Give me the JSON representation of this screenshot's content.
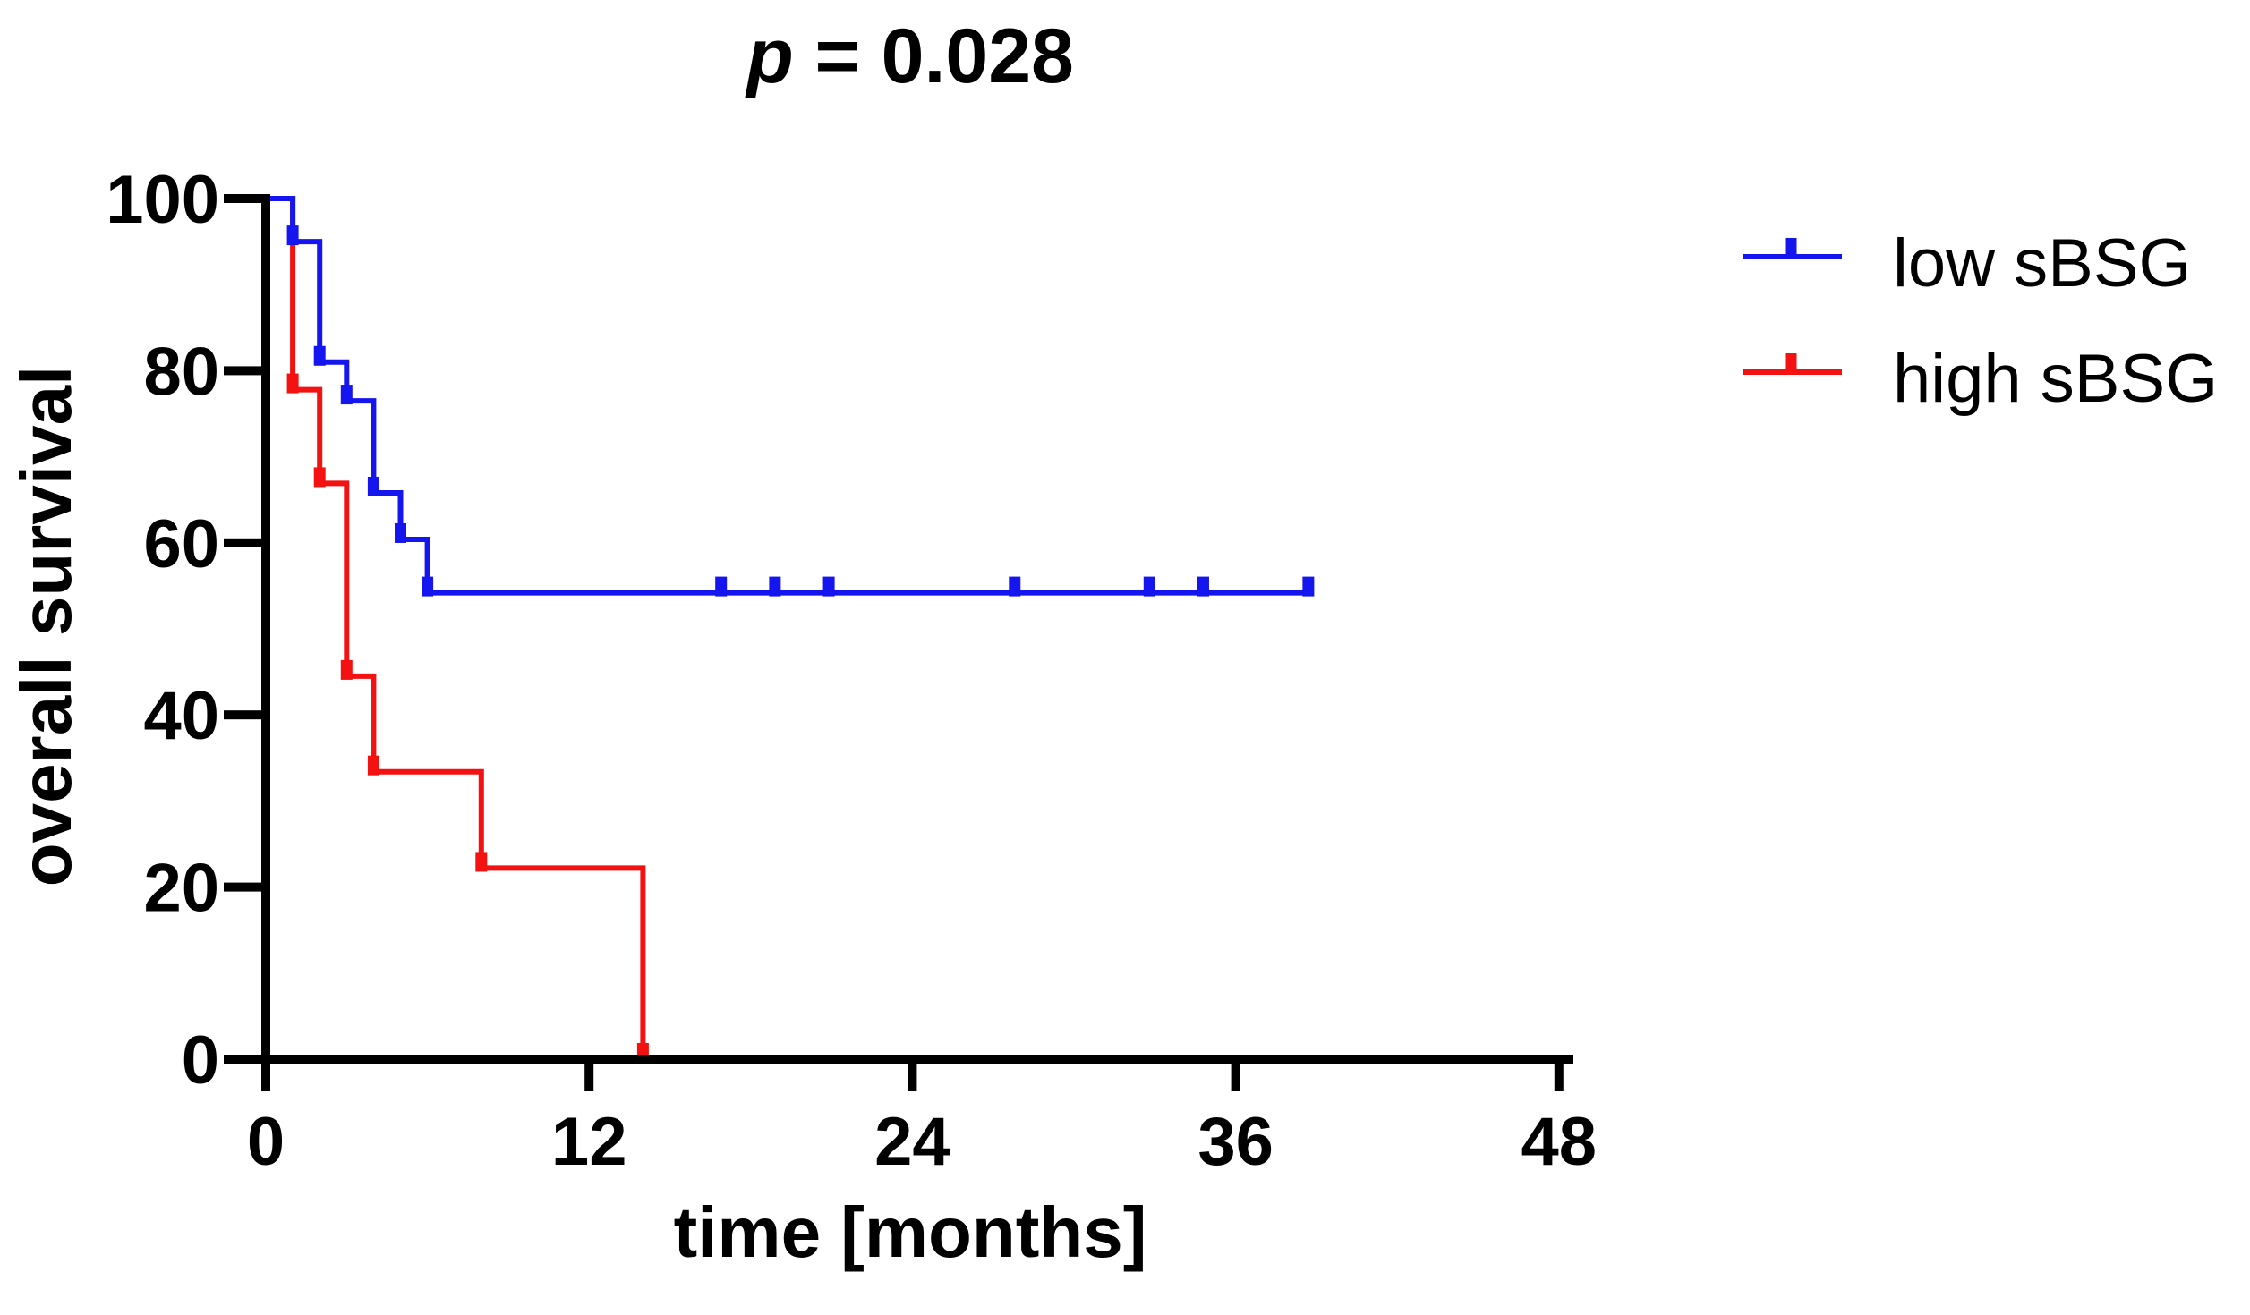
{
  "page": {
    "background": "#ffffff"
  },
  "title": {
    "p_italic": "p",
    "rest": " = 0.028",
    "full": "p = 0.028"
  },
  "axes": {
    "x": {
      "title": "time [months]",
      "tick_labels": [
        "0",
        "12",
        "24",
        "36",
        "48"
      ],
      "tick_values": [
        0,
        12,
        24,
        36,
        48
      ],
      "min": 0,
      "max": 48
    },
    "y": {
      "title": "overall survival",
      "tick_labels": [
        "0",
        "20",
        "40",
        "60",
        "80",
        "100"
      ],
      "tick_values": [
        0,
        20,
        40,
        60,
        80,
        100
      ],
      "min": 0,
      "max": 100
    }
  },
  "legend": {
    "items": [
      {
        "label": "low sBSG",
        "color": "#1515f0"
      },
      {
        "label": "high sBSG",
        "color": "#f31111"
      }
    ]
  },
  "colors": {
    "axis": "#000000",
    "text": "#000000",
    "low_sbsg": "#1515f0",
    "high_sbsg": "#f31111"
  },
  "chart_data": {
    "type": "line",
    "subtype": "kaplan_meier_survival_step",
    "title": "p = 0.028",
    "p_value": 0.028,
    "xlabel": "time [months]",
    "ylabel": "overall survival",
    "xlim": [
      0,
      48
    ],
    "ylim": [
      0,
      100
    ],
    "x_ticks": [
      0,
      12,
      24,
      36,
      48
    ],
    "y_ticks": [
      0,
      20,
      40,
      60,
      80,
      100
    ],
    "grid": false,
    "legend_position": "right",
    "series": [
      {
        "name": "low sBSG",
        "color": "#1515f0",
        "step_points": [
          {
            "time": 0,
            "survival": 100
          },
          {
            "time": 1,
            "survival": 95
          },
          {
            "time": 2,
            "survival": 81
          },
          {
            "time": 3,
            "survival": 76.5
          },
          {
            "time": 4,
            "survival": 65.8
          },
          {
            "time": 5,
            "survival": 60.4
          },
          {
            "time": 6,
            "survival": 54.2
          }
        ],
        "curve_end_time": 38.9,
        "censor_tick_times": [
          16.9,
          18.9,
          20.9,
          27.8,
          32.8,
          34.8,
          38.7
        ]
      },
      {
        "name": "high sBSG",
        "color": "#f31111",
        "step_points": [
          {
            "time": 0,
            "survival": 100
          },
          {
            "time": 1,
            "survival": 77.8
          },
          {
            "time": 2,
            "survival": 66.9
          },
          {
            "time": 3,
            "survival": 44.5
          },
          {
            "time": 4,
            "survival": 33.4
          },
          {
            "time": 8,
            "survival": 22.2
          },
          {
            "time": 14,
            "survival": 0
          }
        ],
        "curve_end_time": 14,
        "censor_tick_times": []
      }
    ]
  }
}
